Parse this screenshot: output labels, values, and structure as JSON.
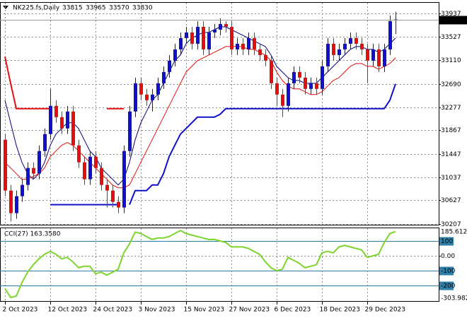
{
  "chart_data": [
    {
      "type": "candlestick",
      "title": "NK225.fs,Daily",
      "categories": [
        "2 Oct 2023",
        null,
        null,
        null,
        null,
        null,
        null,
        null,
        "12 Oct 2023",
        null,
        null,
        null,
        null,
        null,
        null,
        null,
        "24 Oct 2023",
        null,
        null,
        null,
        null,
        null,
        null,
        null,
        "3 Nov 2023",
        null,
        null,
        null,
        null,
        null,
        null,
        null,
        "15 Nov 2023",
        null,
        null,
        null,
        null,
        null,
        null,
        null,
        "27 Nov 2023",
        null,
        null,
        null,
        null,
        null,
        null,
        null,
        "6 Dec 2023",
        null,
        null,
        null,
        null,
        null,
        null,
        null,
        "18 Dec 2023",
        null,
        null,
        null,
        null,
        null,
        null,
        null,
        "29 Dec 2023",
        null,
        null,
        null,
        null,
        null
      ],
      "open": [
        31700,
        30800,
        30400,
        30700,
        30900,
        31200,
        31100,
        31500,
        31800,
        32300,
        32100,
        31900,
        32200,
        31600,
        31300,
        31000,
        31400,
        31200,
        30900,
        30800,
        30600,
        30500,
        31500,
        32200,
        32700,
        32500,
        32400,
        32500,
        32700,
        32900,
        33100,
        33300,
        33500,
        33600,
        33400,
        33700,
        33300,
        33600,
        33650,
        33750,
        33700,
        33300,
        33400,
        33300,
        33500,
        33300,
        33200,
        33100,
        32700,
        32500,
        32300,
        32700,
        32900,
        32800,
        32600,
        32700,
        32600,
        33000,
        33400,
        33200,
        33300,
        33400,
        33500,
        33400,
        33300,
        33100,
        33300,
        33000,
        33300,
        33815
      ],
      "high": [
        31800,
        30900,
        30800,
        31000,
        31300,
        31300,
        31600,
        31900,
        32600,
        32400,
        32200,
        32300,
        32300,
        31700,
        31400,
        31500,
        31500,
        31300,
        31000,
        30900,
        30700,
        31600,
        32300,
        32800,
        32800,
        32600,
        32600,
        32800,
        33000,
        33200,
        33400,
        33600,
        33700,
        33700,
        33800,
        33800,
        33700,
        33750,
        33850,
        33800,
        33800,
        33500,
        33500,
        33600,
        33600,
        33400,
        33300,
        33200,
        32800,
        32600,
        32800,
        33000,
        33000,
        32900,
        32800,
        32800,
        33100,
        33500,
        33500,
        33400,
        33500,
        33600,
        33600,
        33500,
        33400,
        33400,
        33400,
        33400,
        33900,
        33965
      ],
      "low": [
        30700,
        30250,
        30300,
        30600,
        30800,
        31000,
        31000,
        31400,
        31700,
        32000,
        31800,
        31800,
        31500,
        31200,
        30900,
        30900,
        31100,
        30800,
        30500,
        30500,
        30400,
        30400,
        31400,
        32100,
        32400,
        32300,
        32200,
        32400,
        32600,
        32800,
        33000,
        33200,
        33400,
        33300,
        33300,
        33200,
        33200,
        33500,
        33550,
        33600,
        33200,
        33200,
        33200,
        33200,
        33200,
        33100,
        33000,
        32600,
        32300,
        32100,
        32200,
        32600,
        32700,
        32500,
        32500,
        32500,
        32500,
        32900,
        33100,
        33100,
        33200,
        33300,
        33300,
        33200,
        32700,
        33000,
        32900,
        32900,
        33200,
        33570
      ],
      "close": [
        30800,
        30400,
        30700,
        30900,
        31200,
        31100,
        31500,
        31800,
        32300,
        32100,
        31900,
        32200,
        31600,
        31300,
        31000,
        31400,
        31200,
        30900,
        30800,
        30600,
        30500,
        31500,
        32200,
        32700,
        32500,
        32400,
        32500,
        32700,
        32900,
        33100,
        33300,
        33500,
        33600,
        33400,
        33700,
        33300,
        33600,
        33650,
        33750,
        33700,
        33300,
        33400,
        33300,
        33500,
        33300,
        33200,
        33100,
        32700,
        32500,
        32300,
        32700,
        32900,
        32800,
        32600,
        32700,
        32600,
        33000,
        33400,
        33200,
        33300,
        33400,
        33500,
        33400,
        33300,
        33100,
        33300,
        33000,
        33300,
        33800,
        33830
      ],
      "up_color": "#1010c8",
      "down_color": "#e01010",
      "overlays": [
        {
          "color": "#000080",
          "width": 1,
          "values": [
            32400,
            32000,
            31600,
            31300,
            31100,
            31000,
            31100,
            31300,
            31600,
            31800,
            31900,
            32000,
            32000,
            31900,
            31700,
            31500,
            31400,
            31200,
            31100,
            31000,
            30900,
            31000,
            31300,
            31700,
            32000,
            32200,
            32400,
            32500,
            32700,
            32900,
            33100,
            33200,
            33400,
            33500,
            33550,
            33600,
            33600,
            33650,
            33700,
            33700,
            33650,
            33600,
            33550,
            33500,
            33450,
            33400,
            33350,
            33200,
            33000,
            32900,
            32800,
            32750,
            32750,
            32700,
            32700,
            32700,
            32800,
            32900,
            33000,
            33100,
            33200,
            33300,
            33350,
            33350,
            33300,
            33300,
            33250,
            33300,
            33400,
            33500
          ]
        },
        {
          "color": "#e01010",
          "width": 1,
          "values": [
            31300,
            31200,
            31100,
            31000,
            31000,
            31050,
            31100,
            31200,
            31400,
            31500,
            31600,
            31650,
            31600,
            31500,
            31400,
            31300,
            31200,
            31100,
            31000,
            30900,
            30850,
            30850,
            30900,
            31100,
            31300,
            31500,
            31700,
            31900,
            32100,
            32300,
            32500,
            32700,
            32900,
            33000,
            33100,
            33150,
            33200,
            33250,
            33300,
            33350,
            33350,
            33350,
            33350,
            33300,
            33300,
            33250,
            33200,
            33100,
            32900,
            32750,
            32650,
            32600,
            32600,
            32550,
            32500,
            32500,
            32550,
            32650,
            32750,
            32800,
            32900,
            33000,
            33050,
            33050,
            33000,
            33000,
            32950,
            33000,
            33050,
            33150
          ]
        },
        {
          "color": "#e01010",
          "width": 2,
          "values": [
            33170,
            32700,
            32250,
            32250,
            32250,
            32250,
            32250,
            32250,
            32250,
            null,
            null,
            null,
            null,
            null,
            null,
            null,
            null,
            null,
            32250,
            32250,
            32250,
            32250,
            null,
            null,
            null,
            null,
            null,
            null,
            null,
            null,
            null,
            null,
            null,
            null,
            null,
            null,
            null,
            null,
            null,
            null,
            null,
            null,
            null,
            null,
            null,
            null,
            null,
            null,
            null,
            null,
            null,
            null,
            null,
            null,
            null,
            null,
            null,
            null,
            null,
            null,
            null,
            null,
            null,
            null,
            null,
            null,
            null,
            null,
            null,
            null
          ]
        },
        {
          "color": "#1010c8",
          "width": 2,
          "values": [
            null,
            null,
            null,
            null,
            null,
            null,
            null,
            null,
            30550,
            30550,
            30550,
            30550,
            30550,
            30550,
            30550,
            30550,
            30550,
            30550,
            30550,
            30550,
            30550,
            null,
            30550,
            30800,
            30800,
            30800,
            30900,
            30900,
            31100,
            31400,
            31600,
            31800,
            31900,
            32000,
            32100,
            32100,
            32100,
            32100,
            32150,
            32250,
            32250,
            32250,
            32250,
            32250,
            32250,
            32250,
            32250,
            32250,
            32250,
            32250,
            32250,
            32250,
            32250,
            32250,
            32250,
            32250,
            32250,
            32250,
            32250,
            32250,
            32250,
            32250,
            32250,
            32250,
            32250,
            32250,
            32250,
            32250,
            32400,
            32690
          ]
        }
      ],
      "ylim": [
        30195,
        34125
      ],
      "yticks": [
        33937,
        33527,
        33110,
        32690,
        32277,
        31867,
        31447,
        31037,
        30627,
        30207
      ],
      "grid": true
    },
    {
      "type": "line",
      "title": "CCI(27) 163.3580",
      "color": "#7cd42c",
      "values": [
        -220,
        -280,
        -270,
        -180,
        -110,
        -60,
        -20,
        10,
        30,
        10,
        -20,
        -10,
        -40,
        -80,
        -70,
        -70,
        -120,
        -110,
        -130,
        -110,
        -90,
        20,
        80,
        160,
        150,
        130,
        110,
        120,
        120,
        130,
        150,
        170,
        150,
        140,
        130,
        120,
        110,
        110,
        100,
        90,
        60,
        60,
        60,
        50,
        30,
        10,
        -40,
        -80,
        -100,
        -90,
        -10,
        -30,
        -50,
        -80,
        -70,
        -60,
        20,
        30,
        20,
        60,
        70,
        60,
        50,
        40,
        -10,
        0,
        10,
        90,
        150,
        163.358
      ],
      "ylim": [
        -303.9823,
        185.6123
      ],
      "yticks": [
        100,
        {
          "value": 0,
          "label": "0.00"
        },
        -100,
        -200
      ],
      "levels": [
        100,
        -100,
        -200
      ],
      "level_color": "#2f7fa8",
      "grid": true
    }
  ]
}
